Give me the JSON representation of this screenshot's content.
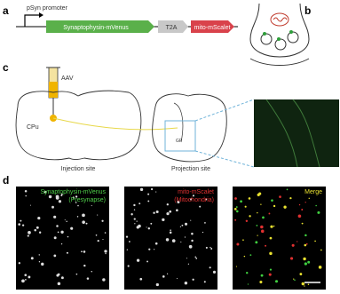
{
  "panels": {
    "a": {
      "label": "a",
      "promoter": "pSyn promoter",
      "segments": [
        "Synaptophysin-mVenus",
        "T2A",
        "mito-mScalet"
      ]
    },
    "b": {
      "label": "b"
    },
    "c": {
      "label": "c",
      "virus": "AAV",
      "region": "CPu",
      "target": "GP",
      "injection": "Injection site",
      "projection": "Projection site"
    },
    "d": {
      "label": "d",
      "images": [
        {
          "title": "Synaptophysin-mVenus",
          "subtitle": "(Presynapse)"
        },
        {
          "title": "mito-mScalet",
          "subtitle": "(Mitochondria)"
        },
        {
          "title": "Merge"
        }
      ]
    }
  }
}
